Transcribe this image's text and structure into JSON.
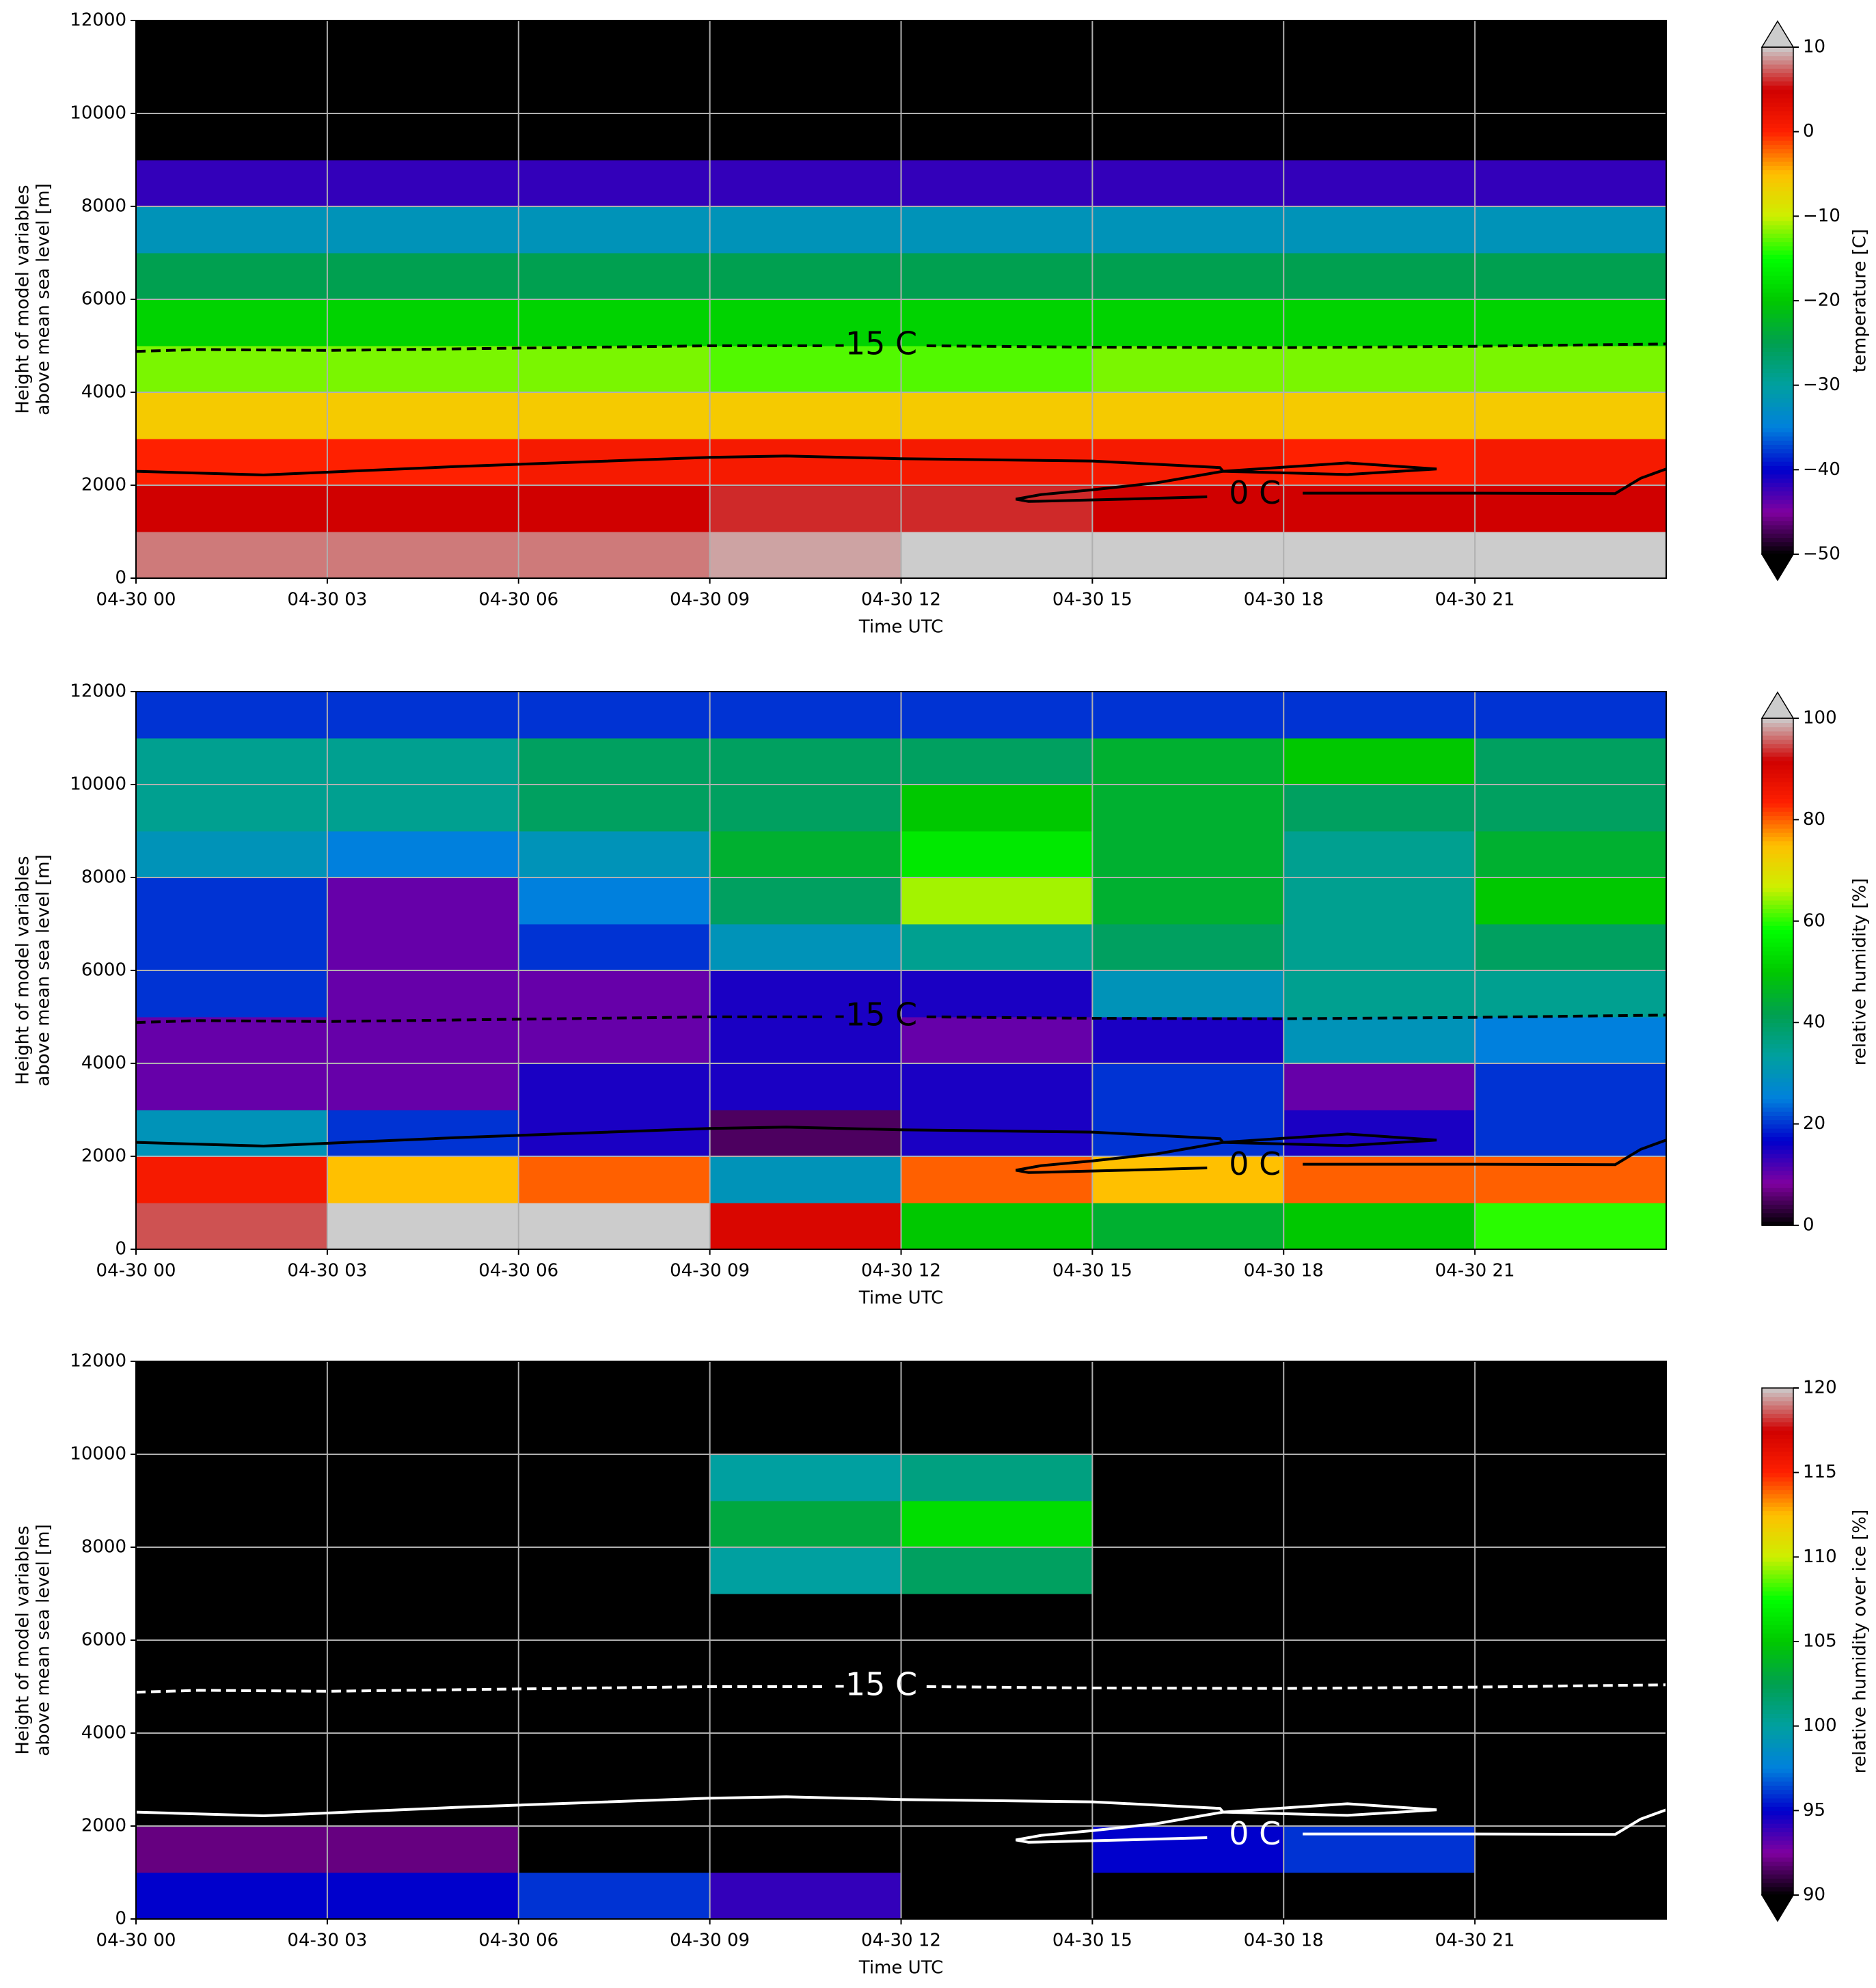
{
  "chart_data": [
    {
      "type": "heatmap",
      "x_label": "Time UTC",
      "y_label": [
        "Height of model variables",
        "above mean sea level [m]"
      ],
      "xlim": [
        0,
        24
      ],
      "ylim": [
        0,
        12000
      ],
      "xticks": [
        {
          "value": 0,
          "label": "04-30 00"
        },
        {
          "value": 3,
          "label": "04-30 03"
        },
        {
          "value": 6,
          "label": "04-30 06"
        },
        {
          "value": 9,
          "label": "04-30 09"
        },
        {
          "value": 12,
          "label": "04-30 12"
        },
        {
          "value": 15,
          "label": "04-30 15"
        },
        {
          "value": 18,
          "label": "04-30 18"
        },
        {
          "value": 21,
          "label": "04-30 21"
        }
      ],
      "yticks": [
        0,
        2000,
        4000,
        6000,
        8000,
        10000,
        12000
      ],
      "grid": true,
      "z": [
        [
          8,
          8,
          8,
          9,
          11,
          11,
          11,
          11
        ],
        [
          5,
          5,
          5,
          6,
          6,
          5,
          5,
          5
        ],
        [
          0,
          0,
          1,
          1,
          1,
          1,
          0,
          1
        ],
        [
          -6,
          -6,
          -6,
          -6,
          -6,
          -6,
          -6,
          -6
        ],
        [
          -12,
          -12,
          -12,
          -13,
          -13,
          -12,
          -12,
          -12
        ],
        [
          -19,
          -19,
          -19,
          -19,
          -19,
          -19,
          -19,
          -19
        ],
        [
          -25,
          -25,
          -25,
          -25,
          -25,
          -25,
          -25,
          -25
        ],
        [
          -32,
          -32,
          -32,
          -32,
          -32,
          -32,
          -32,
          -32
        ],
        [
          -42,
          -42,
          -42,
          -42,
          -42,
          -42,
          -42,
          -42
        ],
        [
          -52,
          -52,
          -52,
          -52,
          -52,
          -52,
          -52,
          -52
        ],
        [
          -55,
          -55,
          -55,
          -55,
          -55,
          -55,
          -55,
          -55
        ],
        [
          -56,
          -56,
          -56,
          -56,
          -56,
          -56,
          -56,
          -56
        ]
      ],
      "colormap": [
        "#000000",
        "#8000a0",
        "#0000cc",
        "#0080dd",
        "#00a0a0",
        "#00a050",
        "#00c800",
        "#00ff00",
        "#ccf000",
        "#ffc000",
        "#ff2000",
        "#d00000",
        "#cccccc"
      ],
      "clim": [
        -50,
        10
      ],
      "extend": "both",
      "colorbar_label": "temperature [C]",
      "cticks": [
        10,
        0,
        {
          "value": -10,
          "label": "−10"
        },
        {
          "value": -20,
          "label": "−20"
        },
        {
          "value": -30,
          "label": "−30"
        },
        {
          "value": -40,
          "label": "−40"
        },
        {
          "value": -50,
          "label": "−50"
        }
      ],
      "contour_color": "#000000",
      "contours": [
        {
          "name": "-15 C",
          "dashed": true,
          "x": [
            0,
            1,
            3,
            6,
            9,
            10.8,
            null,
            12.4,
            15,
            18,
            21,
            24
          ],
          "y": [
            4880,
            4920,
            4900,
            4950,
            5000,
            5000,
            null,
            5000,
            4970,
            4960,
            4990,
            5040
          ]
        },
        {
          "name": "0 C",
          "dashed": false,
          "x": [
            0,
            2,
            5,
            9,
            10.2,
            12,
            15,
            17,
            17.05,
            19,
            20.4,
            19,
            17.05,
            16,
            15,
            14.2,
            13.8,
            14,
            15.5,
            16.8,
            null,
            18.3,
            21,
            23.2,
            23.6,
            24
          ],
          "y": [
            2300,
            2220,
            2400,
            2600,
            2630,
            2570,
            2520,
            2380,
            2300,
            2480,
            2350,
            2230,
            2300,
            2050,
            1900,
            1800,
            1700,
            1650,
            1700,
            1750,
            null,
            1830,
            1830,
            1820,
            2150,
            2350
          ]
        }
      ]
    },
    {
      "type": "heatmap",
      "x_label": "Time UTC",
      "y_label": [
        "Height of model variables",
        "above mean sea level [m]"
      ],
      "xlim": [
        0,
        24
      ],
      "ylim": [
        0,
        12000
      ],
      "xticks": [
        {
          "value": 0,
          "label": "04-30 00"
        },
        {
          "value": 3,
          "label": "04-30 03"
        },
        {
          "value": 6,
          "label": "04-30 06"
        },
        {
          "value": 9,
          "label": "04-30 09"
        },
        {
          "value": 12,
          "label": "04-30 12"
        },
        {
          "value": 15,
          "label": "04-30 15"
        },
        {
          "value": 18,
          "label": "04-30 18"
        },
        {
          "value": 21,
          "label": "04-30 21"
        }
      ],
      "yticks": [
        0,
        2000,
        4000,
        6000,
        8000,
        10000,
        12000
      ],
      "grid": true,
      "z": [
        [
          95,
          100,
          100,
          90,
          50,
          45,
          50,
          60
        ],
        [
          85,
          75,
          80,
          30,
          80,
          75,
          80,
          80
        ],
        [
          30,
          20,
          15,
          5,
          15,
          20,
          15,
          20
        ],
        [
          10,
          10,
          15,
          15,
          15,
          20,
          10,
          20
        ],
        [
          10,
          10,
          10,
          15,
          10,
          15,
          30,
          25
        ],
        [
          20,
          10,
          10,
          15,
          15,
          30,
          35,
          35
        ],
        [
          20,
          10,
          20,
          30,
          35,
          40,
          35,
          40
        ],
        [
          20,
          10,
          25,
          40,
          65,
          45,
          35,
          50
        ],
        [
          30,
          25,
          30,
          45,
          55,
          45,
          35,
          45
        ],
        [
          35,
          35,
          40,
          40,
          50,
          45,
          40,
          40
        ],
        [
          35,
          35,
          40,
          40,
          40,
          45,
          50,
          40
        ],
        [
          20,
          20,
          20,
          20,
          20,
          20,
          20,
          20
        ]
      ],
      "colormap": [
        "#000000",
        "#8000a0",
        "#0000cc",
        "#0080dd",
        "#00a0a0",
        "#00a050",
        "#00c800",
        "#00ff00",
        "#ccf000",
        "#ffc000",
        "#ff2000",
        "#d00000",
        "#cccccc"
      ],
      "clim": [
        0,
        100
      ],
      "extend": "max",
      "colorbar_label": "relative humidity [%]",
      "cticks": [
        100,
        80,
        60,
        40,
        20,
        0
      ],
      "contour_color": "#000000",
      "contours": [
        {
          "name": "-15 C",
          "dashed": true,
          "x": [
            0,
            1,
            3,
            6,
            9,
            10.8,
            null,
            12.4,
            15,
            18,
            21,
            24
          ],
          "y": [
            4880,
            4920,
            4900,
            4950,
            5000,
            5000,
            null,
            5000,
            4970,
            4960,
            4990,
            5040
          ]
        },
        {
          "name": "0 C",
          "dashed": false,
          "x": [
            0,
            2,
            5,
            9,
            10.2,
            12,
            15,
            17,
            17.05,
            19,
            20.4,
            19,
            17.05,
            16,
            15,
            14.2,
            13.8,
            14,
            15.5,
            16.8,
            null,
            18.3,
            21,
            23.2,
            23.6,
            24
          ],
          "y": [
            2300,
            2220,
            2400,
            2600,
            2630,
            2570,
            2520,
            2380,
            2300,
            2480,
            2350,
            2230,
            2300,
            2050,
            1900,
            1800,
            1700,
            1650,
            1700,
            1750,
            null,
            1830,
            1830,
            1820,
            2150,
            2350
          ]
        }
      ]
    },
    {
      "type": "heatmap",
      "x_label": "Time UTC",
      "y_label": [
        "Height of model variables",
        "above mean sea level [m]"
      ],
      "xlim": [
        0,
        24
      ],
      "ylim": [
        0,
        12000
      ],
      "xticks": [
        {
          "value": 0,
          "label": "04-30 00"
        },
        {
          "value": 3,
          "label": "04-30 03"
        },
        {
          "value": 6,
          "label": "04-30 06"
        },
        {
          "value": 9,
          "label": "04-30 09"
        },
        {
          "value": 12,
          "label": "04-30 12"
        },
        {
          "value": 15,
          "label": "04-30 15"
        },
        {
          "value": 18,
          "label": "04-30 18"
        },
        {
          "value": 21,
          "label": "04-30 21"
        }
      ],
      "yticks": [
        0,
        2000,
        4000,
        6000,
        8000,
        10000,
        12000
      ],
      "grid": true,
      "z": [
        [
          95,
          95,
          96,
          94,
          80,
          80,
          80,
          80
        ],
        [
          92,
          92,
          80,
          80,
          80,
          95,
          96,
          80
        ],
        [
          80,
          80,
          80,
          80,
          80,
          80,
          80,
          80
        ],
        [
          80,
          80,
          80,
          80,
          80,
          80,
          80,
          80
        ],
        [
          80,
          80,
          80,
          80,
          80,
          80,
          80,
          80
        ],
        [
          80,
          80,
          80,
          80,
          80,
          80,
          80,
          80
        ],
        [
          80,
          80,
          80,
          80,
          80,
          80,
          80,
          80
        ],
        [
          80,
          80,
          80,
          100,
          102,
          80,
          80,
          80
        ],
        [
          80,
          80,
          80,
          103,
          106,
          80,
          80,
          80
        ],
        [
          80,
          80,
          80,
          100,
          101,
          80,
          80,
          80
        ],
        [
          80,
          80,
          80,
          80,
          80,
          80,
          80,
          80
        ],
        [
          80,
          80,
          80,
          80,
          80,
          80,
          80,
          80
        ]
      ],
      "colormap": [
        "#000000",
        "#8000a0",
        "#0000cc",
        "#0080dd",
        "#00a0a0",
        "#00a050",
        "#00c800",
        "#00ff00",
        "#ccf000",
        "#ffc000",
        "#ff2000",
        "#d00000",
        "#cccccc"
      ],
      "clim": [
        90,
        120
      ],
      "extend": "min",
      "colorbar_label": "relative humidity over ice [%]",
      "cticks": [
        120,
        115,
        110,
        105,
        100,
        95,
        90
      ],
      "contour_color": "#ffffff",
      "contours": [
        {
          "name": "-15 C",
          "dashed": true,
          "x": [
            0,
            1,
            3,
            6,
            9,
            10.8,
            null,
            12.4,
            15,
            18,
            21,
            24
          ],
          "y": [
            4880,
            4920,
            4900,
            4950,
            5000,
            5000,
            null,
            5000,
            4970,
            4960,
            4990,
            5040
          ]
        },
        {
          "name": "0 C",
          "dashed": false,
          "x": [
            0,
            2,
            5,
            9,
            10.2,
            12,
            15,
            17,
            17.05,
            19,
            20.4,
            19,
            17.05,
            16,
            15,
            14.2,
            13.8,
            14,
            15.5,
            16.8,
            null,
            18.3,
            21,
            23.2,
            23.6,
            24
          ],
          "y": [
            2300,
            2220,
            2400,
            2600,
            2630,
            2570,
            2520,
            2380,
            2300,
            2480,
            2350,
            2230,
            2300,
            2050,
            1900,
            1800,
            1700,
            1650,
            1700,
            1750,
            null,
            1830,
            1830,
            1820,
            2150,
            2350
          ]
        }
      ]
    }
  ]
}
